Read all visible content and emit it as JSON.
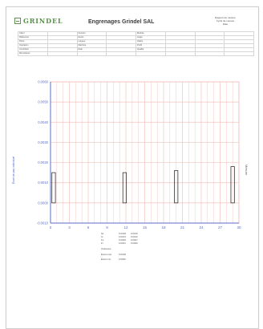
{
  "header": {
    "logo_text": "GRINDEL",
    "title": "Engrenages Grindel SAL",
    "meta_lines": [
      "Rapport de mesure",
      "Cycle de mesure",
      "Date"
    ]
  },
  "info_table": [
    [
      "Client",
      "",
      "Numéro",
      "",
      "Module",
      "",
      "",
      ""
    ],
    [
      "Référence",
      "",
      "Dents",
      "",
      "Angle",
      "",
      "",
      ""
    ],
    [
      "Pièce",
      "",
      "Largeur",
      "",
      "Hélice",
      "",
      "",
      ""
    ],
    [
      "Opération",
      "",
      "Machine",
      "",
      "Profil",
      "",
      "",
      ""
    ],
    [
      "Contrôleur",
      "",
      "Date",
      "",
      "Qualité",
      "",
      "",
      ""
    ],
    [
      "Remarques",
      "",
      "",
      "",
      "",
      "",
      "",
      ""
    ]
  ],
  "chart_data": {
    "type": "bar",
    "categories": [
      "0",
      "3",
      "6",
      "9",
      "12",
      "15",
      "18",
      "21",
      "24",
      "27",
      "30"
    ],
    "y_ticks": [
      "0.0060",
      "0.0050",
      "0.0040",
      "0.0030",
      "0.0020",
      "0.0010",
      "0.0000",
      "-0.0010"
    ],
    "ylim": [
      -0.001,
      0.006
    ],
    "grid": true,
    "color": "#f2c3bc",
    "axis_color": "#5b6cc9",
    "bar_color": "#333333",
    "bars": [
      {
        "x": 0.5,
        "value": 0.0015
      },
      {
        "x": 11.8,
        "value": 0.0015
      },
      {
        "x": 20.0,
        "value": 0.0016
      },
      {
        "x": 29.0,
        "value": 0.0018
      }
    ],
    "left_label": "Écart de pas individuel",
    "right_label": "Mesure"
  },
  "summary": {
    "rows": [
      [
        "fpt",
        "0.0018",
        "0.0016"
      ],
      [
        "fu",
        "0.0013",
        "0.0012"
      ],
      [
        "Fp",
        "0.0029",
        "0.0027"
      ],
      [
        "Fr",
        "0.0021",
        "0.0020"
      ]
    ],
    "block1": [
      "Tolérance",
      "",
      "",
      ""
    ],
    "block2": [
      "Écart max",
      "0.0018",
      "",
      ""
    ],
    "block3": [
      "Écart min",
      "0.0000",
      "",
      ""
    ],
    "footer_line": ""
  }
}
